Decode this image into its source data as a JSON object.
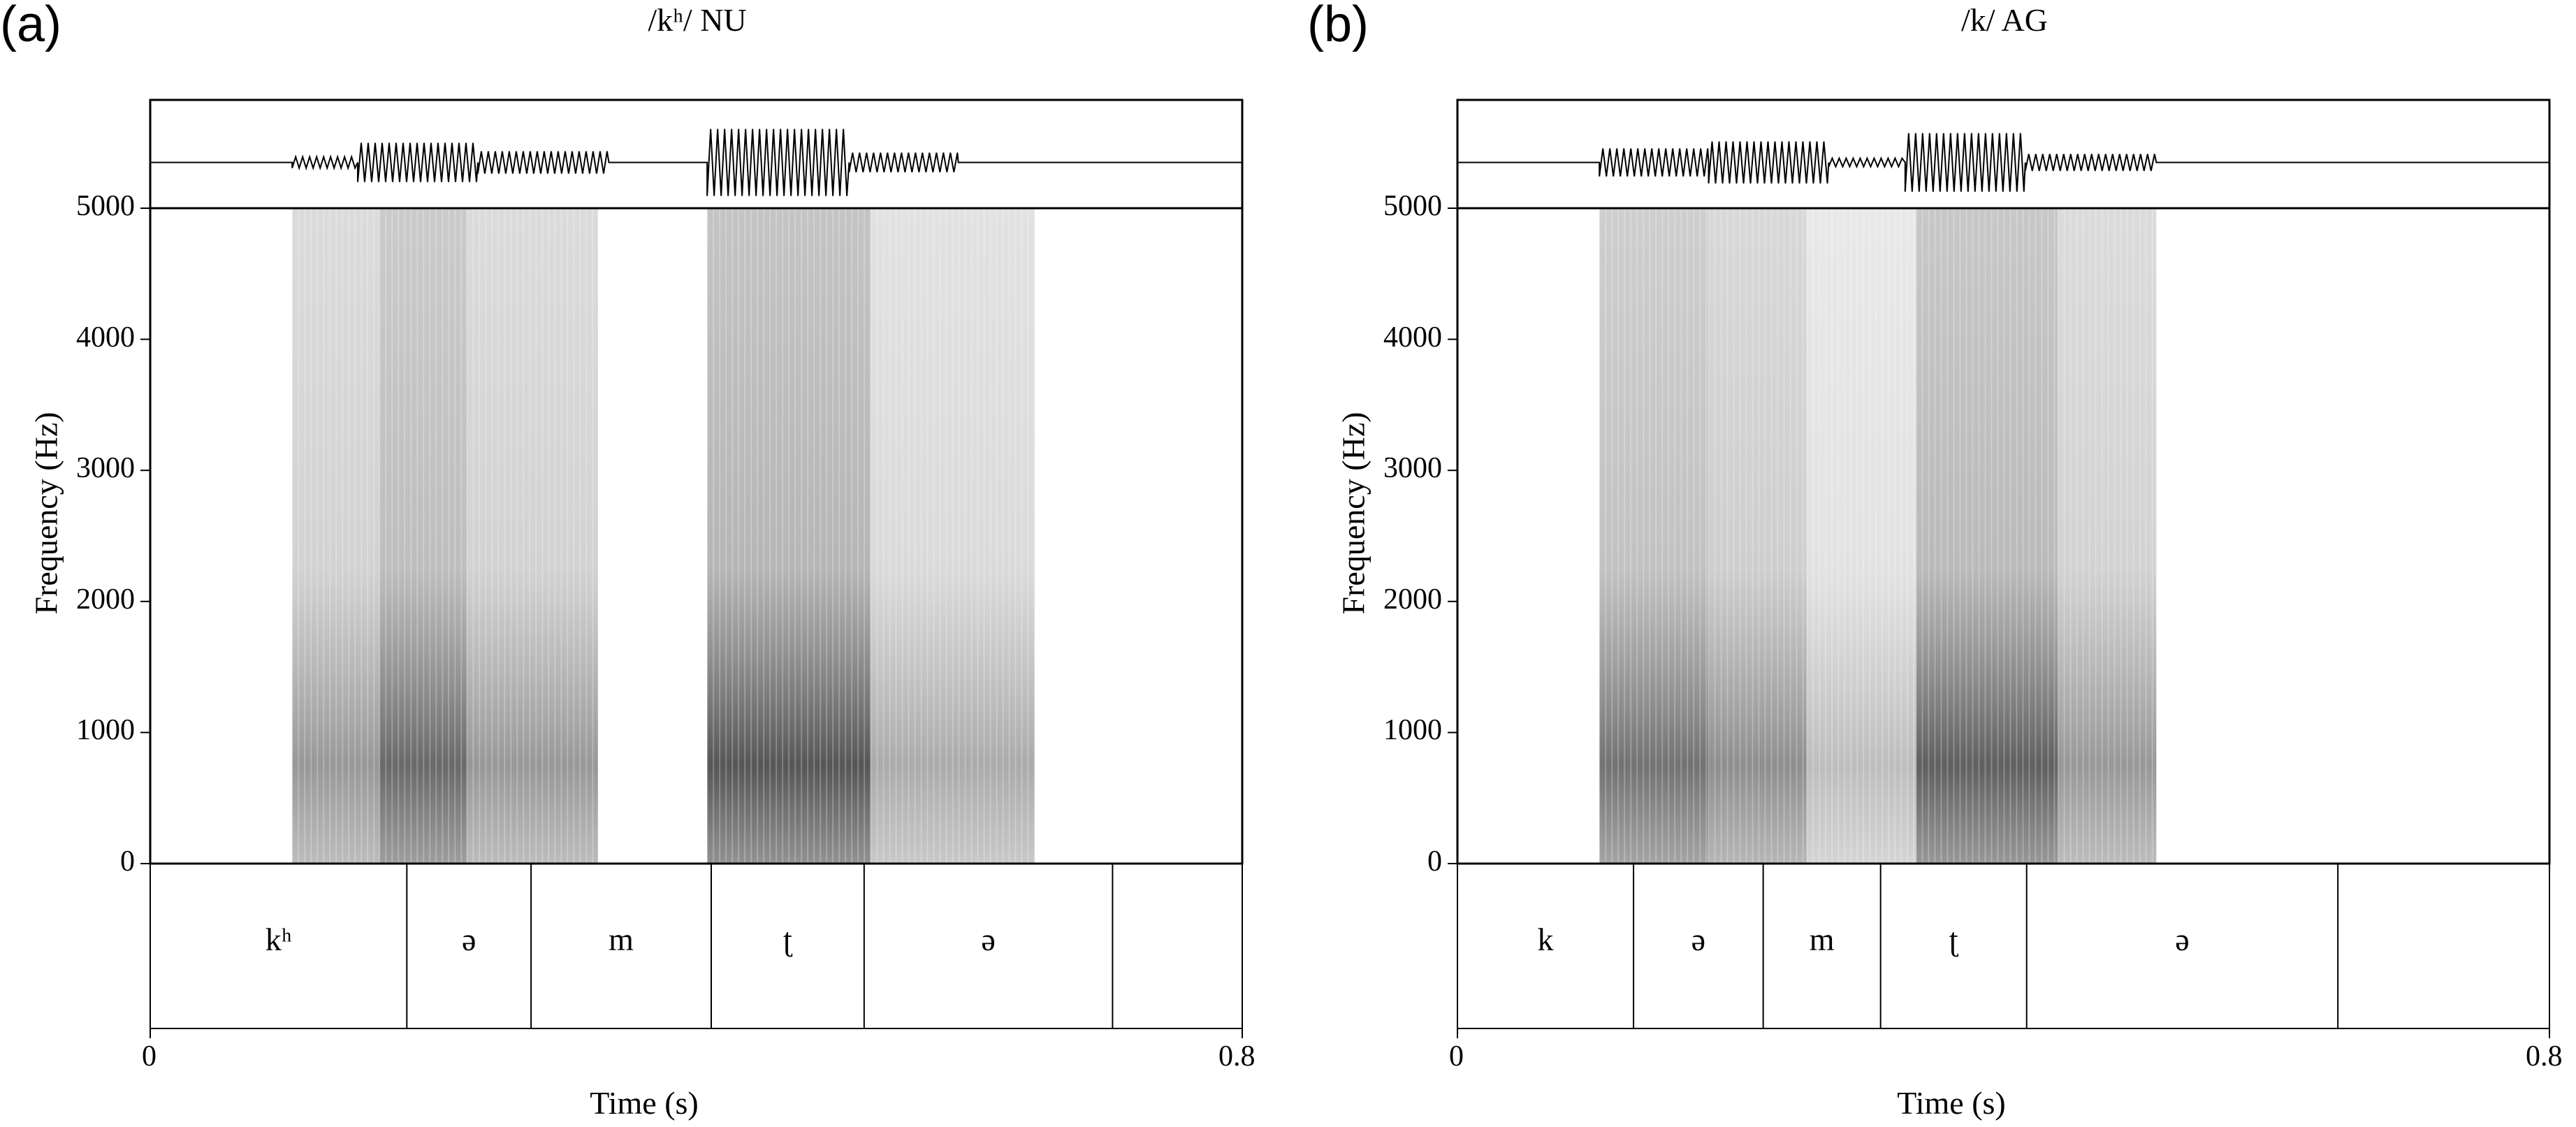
{
  "chart_data": [
    {
      "type": "spectrogram",
      "panel_label": "(a)",
      "title": "/kʰ/ NU",
      "ylabel": "Frequency (Hz)",
      "xlabel": "Time (s)",
      "ylim": [
        0,
        5000
      ],
      "yticks": [
        "0",
        "1000",
        "2000",
        "3000",
        "4000",
        "5000"
      ],
      "xlim": [
        0,
        0.8
      ],
      "xticks": [
        "0",
        "0.8"
      ],
      "segments": [
        {
          "label": "kʰ",
          "start": 0.0,
          "end": 0.188
        },
        {
          "label": "ə",
          "start": 0.188,
          "end": 0.279
        },
        {
          "label": "m",
          "start": 0.279,
          "end": 0.411
        },
        {
          "label": "ʈ",
          "start": 0.411,
          "end": 0.523
        },
        {
          "label": "ə",
          "start": 0.523,
          "end": 0.705
        },
        {
          "label": "",
          "start": 0.705,
          "end": 0.8
        }
      ]
    },
    {
      "type": "spectrogram",
      "panel_label": "(b)",
      "title": "/k/ AG",
      "ylabel": "Frequency (Hz)",
      "xlabel": "Time (s)",
      "ylim": [
        0,
        5000
      ],
      "yticks": [
        "0",
        "1000",
        "2000",
        "3000",
        "4000",
        "5000"
      ],
      "xlim": [
        0,
        0.8
      ],
      "xticks": [
        "0",
        "0.8"
      ],
      "segments": [
        {
          "label": "k",
          "start": 0.0,
          "end": 0.129
        },
        {
          "label": "ə",
          "start": 0.129,
          "end": 0.224
        },
        {
          "label": "m",
          "start": 0.224,
          "end": 0.31
        },
        {
          "label": "ʈ",
          "start": 0.31,
          "end": 0.417
        },
        {
          "label": "ə",
          "start": 0.417,
          "end": 0.645
        },
        {
          "label": "",
          "start": 0.645,
          "end": 0.8
        }
      ]
    }
  ]
}
